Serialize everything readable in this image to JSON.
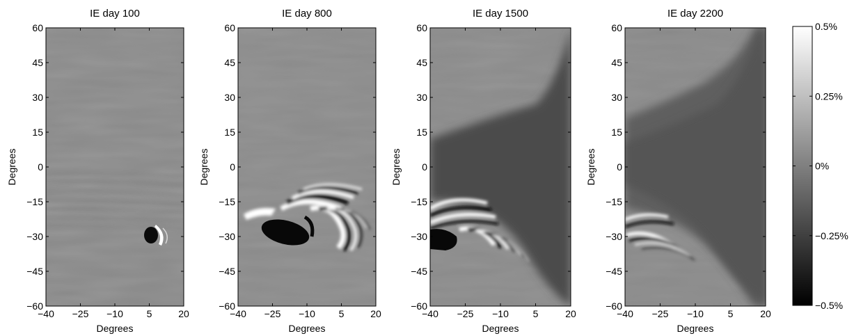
{
  "chart_data": {
    "type": "heatmap",
    "panels": [
      {
        "title": "IE day 100",
        "xlabel": "Degrees",
        "ylabel": "Degrees"
      },
      {
        "title": "IE day 800",
        "xlabel": "Degrees",
        "ylabel": "Degrees"
      },
      {
        "title": "IE day 1500",
        "xlabel": "Degrees",
        "ylabel": "Degrees"
      },
      {
        "title": "IE day 2200",
        "xlabel": "Degrees",
        "ylabel": "Degrees"
      }
    ],
    "xlim": [
      -40,
      20
    ],
    "ylim": [
      -60,
      60
    ],
    "xticks": [
      -40,
      -25,
      -10,
      5,
      20
    ],
    "xtick_labels": [
      "−40",
      "−25",
      "−10",
      "5",
      "20"
    ],
    "yticks": [
      60,
      45,
      30,
      15,
      0,
      -15,
      -30,
      -45,
      -60
    ],
    "ytick_labels": [
      "60",
      "45",
      "30",
      "15",
      "0",
      "−15",
      "−30",
      "−45",
      "−60"
    ],
    "colorbar": {
      "colormap": "gray",
      "range": [
        -0.5,
        0.5
      ],
      "ticks": [
        0.5,
        0.25,
        0,
        -0.25,
        -0.5
      ],
      "tick_labels": [
        "0.5%",
        "0.25%",
        "0%",
        "−0.25%",
        "−0.5%"
      ]
    }
  }
}
